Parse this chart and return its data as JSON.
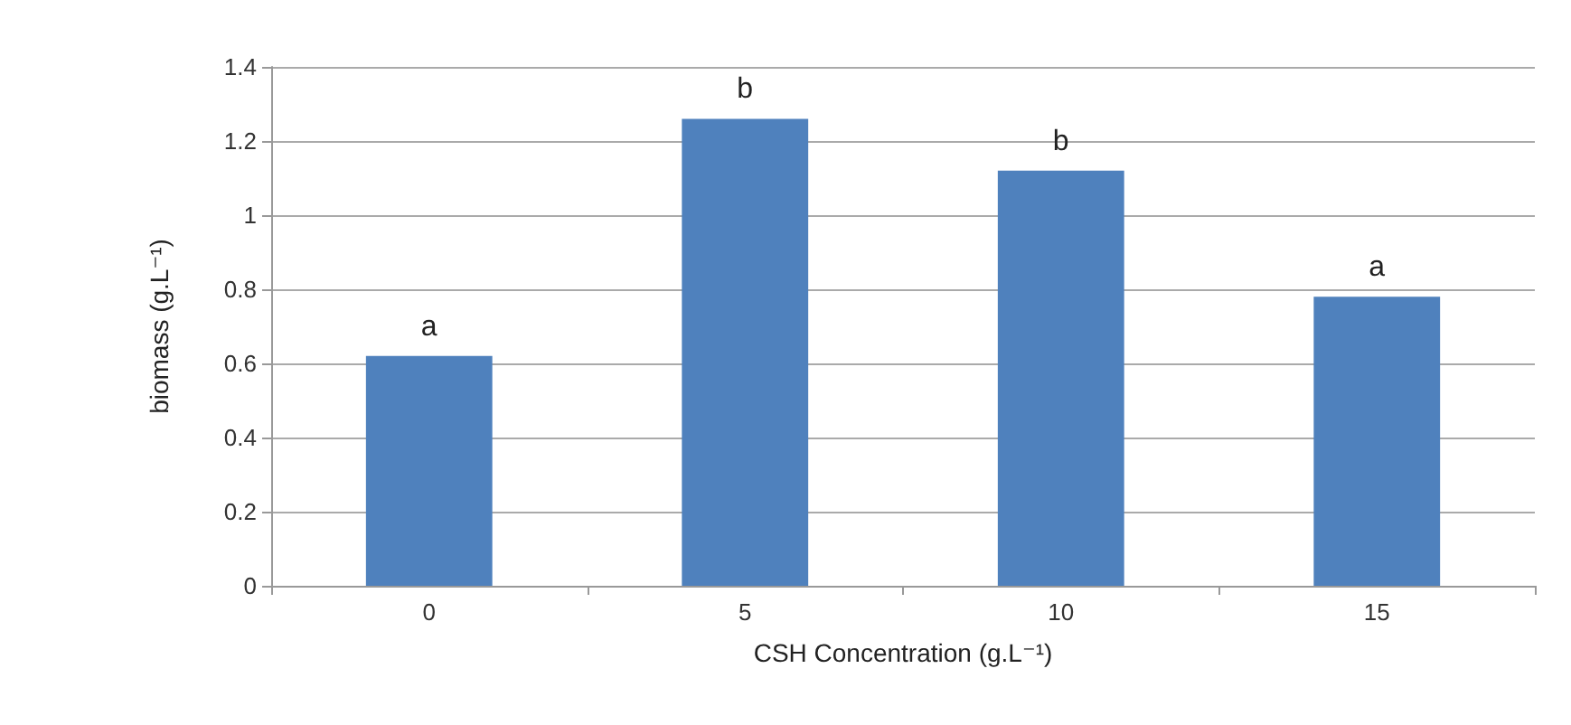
{
  "chart_data": {
    "type": "bar",
    "xlabel": "CSH Concentration (g.L⁻¹)",
    "ylabel": "biomass (g.L⁻¹)",
    "categories": [
      "0",
      "5",
      "10",
      "15"
    ],
    "values": [
      0.62,
      1.26,
      1.12,
      0.78
    ],
    "color": "#4f81bd",
    "ylim": [
      0,
      1.4
    ],
    "yticks": [
      0,
      0.2,
      0.4,
      0.6,
      0.8,
      1,
      1.2,
      1.4
    ],
    "grid": "y",
    "annotations": [
      {
        "text": "a",
        "x": "0",
        "y": 0.62
      },
      {
        "text": "b",
        "x": "5",
        "y": 1.26
      },
      {
        "text": "b",
        "x": "10",
        "y": 1.12
      },
      {
        "text": "a",
        "x": "15",
        "y": 0.78
      }
    ]
  }
}
